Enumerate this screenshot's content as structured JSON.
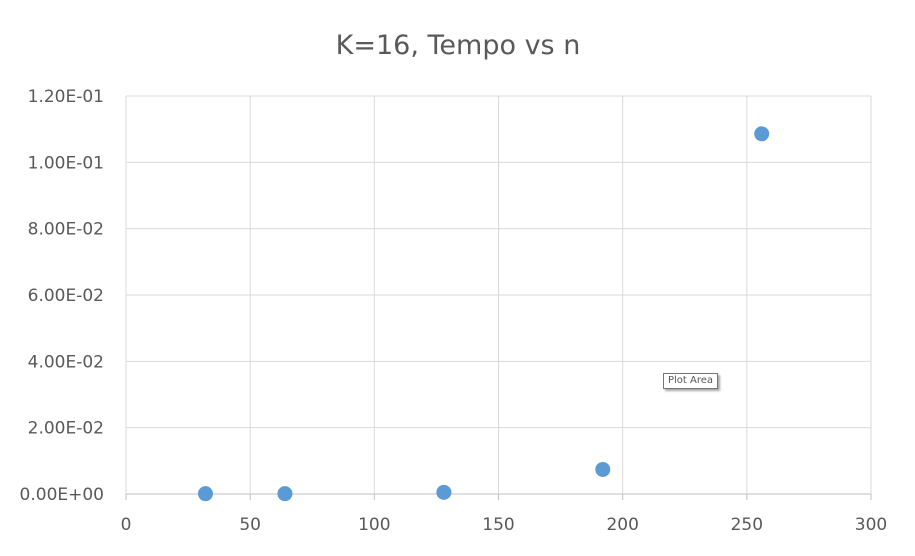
{
  "chart_data": {
    "type": "scatter",
    "title": "K=16, Tempo vs n",
    "xlabel": "",
    "ylabel": "",
    "xlim": [
      0,
      300
    ],
    "ylim": [
      0,
      0.12
    ],
    "x_ticks": [
      "0",
      "50",
      "100",
      "150",
      "200",
      "250",
      "300"
    ],
    "y_ticks": [
      "0.00E+00",
      "2.00E-02",
      "4.00E-02",
      "6.00E-02",
      "8.00E-02",
      "1.00E-01",
      "1.20E-01"
    ],
    "x_tick_values": [
      0,
      50,
      100,
      150,
      200,
      250,
      300
    ],
    "y_tick_values": [
      0,
      0.02,
      0.04,
      0.06,
      0.08,
      0.1,
      0.12
    ],
    "series": [
      {
        "x": [
          32,
          64,
          128,
          192,
          256
        ],
        "y": [
          0.0001,
          0.0001,
          0.0005,
          0.0074,
          0.1086
        ]
      }
    ],
    "grid": true,
    "legend": "none",
    "colors": {
      "point": "#5b9bd5",
      "grid": "#d9d9d9",
      "text": "#595959"
    }
  },
  "tooltip": {
    "text": "Plot Area"
  }
}
